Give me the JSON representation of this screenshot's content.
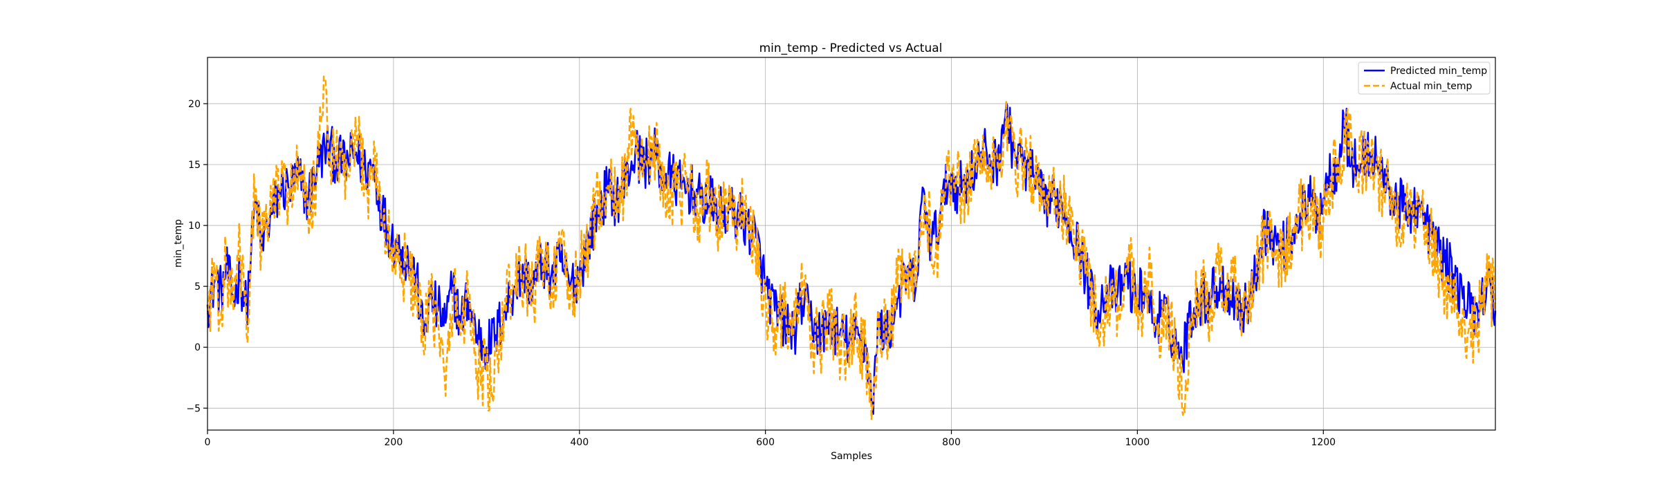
{
  "chart_data": {
    "type": "line",
    "title": "min_temp - Predicted vs Actual",
    "xlabel": "Samples",
    "ylabel": "min_temp",
    "xlim": [
      0,
      1385
    ],
    "ylim": [
      -6.8,
      23.8
    ],
    "xticks": [
      0,
      200,
      400,
      600,
      800,
      1000,
      1200
    ],
    "yticks": [
      -5,
      0,
      5,
      10,
      15,
      20
    ],
    "grid": true,
    "legend_position": "top-right",
    "series": [
      {
        "name": "Predicted min_temp",
        "color": "#0000ff",
        "style": "solid",
        "anchors": [
          [
            0,
            3.5
          ],
          [
            8,
            5.5
          ],
          [
            15,
            4.5
          ],
          [
            20,
            6.5
          ],
          [
            28,
            4
          ],
          [
            35,
            6
          ],
          [
            42,
            3
          ],
          [
            47,
            8
          ],
          [
            52,
            12
          ],
          [
            58,
            8
          ],
          [
            64,
            10
          ],
          [
            70,
            11
          ],
          [
            78,
            13
          ],
          [
            88,
            13
          ],
          [
            98,
            14
          ],
          [
            108,
            12
          ],
          [
            118,
            15
          ],
          [
            128,
            16.5
          ],
          [
            138,
            15.5
          ],
          [
            148,
            15
          ],
          [
            160,
            16
          ],
          [
            170,
            14.5
          ],
          [
            178,
            15
          ],
          [
            188,
            11
          ],
          [
            198,
            9
          ],
          [
            208,
            8
          ],
          [
            216,
            7
          ],
          [
            224,
            6
          ],
          [
            232,
            1
          ],
          [
            240,
            4
          ],
          [
            248,
            3
          ],
          [
            256,
            2
          ],
          [
            264,
            5
          ],
          [
            272,
            2
          ],
          [
            280,
            4
          ],
          [
            290,
            1
          ],
          [
            300,
            0
          ],
          [
            310,
            1
          ],
          [
            320,
            3
          ],
          [
            330,
            5
          ],
          [
            340,
            6
          ],
          [
            350,
            5
          ],
          [
            360,
            7
          ],
          [
            370,
            6
          ],
          [
            380,
            7
          ],
          [
            390,
            5
          ],
          [
            400,
            6
          ],
          [
            410,
            9
          ],
          [
            420,
            11
          ],
          [
            430,
            13
          ],
          [
            440,
            12
          ],
          [
            450,
            14
          ],
          [
            460,
            16
          ],
          [
            470,
            15
          ],
          [
            480,
            16
          ],
          [
            490,
            14
          ],
          [
            500,
            14
          ],
          [
            510,
            13
          ],
          [
            520,
            13
          ],
          [
            530,
            12
          ],
          [
            540,
            12
          ],
          [
            550,
            11
          ],
          [
            560,
            11
          ],
          [
            570,
            11
          ],
          [
            580,
            10
          ],
          [
            590,
            9
          ],
          [
            600,
            5
          ],
          [
            610,
            3
          ],
          [
            620,
            2
          ],
          [
            630,
            1
          ],
          [
            640,
            4
          ],
          [
            650,
            2
          ],
          [
            660,
            1
          ],
          [
            670,
            2
          ],
          [
            680,
            1
          ],
          [
            690,
            0.5
          ],
          [
            700,
            1
          ],
          [
            708,
            0
          ],
          [
            715,
            -4.5
          ],
          [
            722,
            2
          ],
          [
            732,
            1
          ],
          [
            742,
            4
          ],
          [
            752,
            6
          ],
          [
            762,
            5
          ],
          [
            770,
            13
          ],
          [
            778,
            8
          ],
          [
            788,
            11
          ],
          [
            798,
            14
          ],
          [
            808,
            13
          ],
          [
            818,
            14
          ],
          [
            828,
            15
          ],
          [
            838,
            16
          ],
          [
            848,
            15
          ],
          [
            858,
            19
          ],
          [
            868,
            16
          ],
          [
            878,
            15
          ],
          [
            888,
            14
          ],
          [
            898,
            12
          ],
          [
            908,
            12
          ],
          [
            918,
            12
          ],
          [
            928,
            10
          ],
          [
            938,
            8
          ],
          [
            948,
            5
          ],
          [
            958,
            3
          ],
          [
            968,
            5
          ],
          [
            978,
            4
          ],
          [
            988,
            6
          ],
          [
            998,
            4
          ],
          [
            1008,
            5
          ],
          [
            1018,
            2
          ],
          [
            1028,
            3
          ],
          [
            1038,
            1
          ],
          [
            1048,
            -1
          ],
          [
            1055,
            2
          ],
          [
            1065,
            4
          ],
          [
            1075,
            4
          ],
          [
            1085,
            5
          ],
          [
            1095,
            5
          ],
          [
            1105,
            4
          ],
          [
            1115,
            3
          ],
          [
            1125,
            5
          ],
          [
            1135,
            10
          ],
          [
            1145,
            9
          ],
          [
            1155,
            8
          ],
          [
            1165,
            9
          ],
          [
            1175,
            11
          ],
          [
            1185,
            12
          ],
          [
            1195,
            11
          ],
          [
            1205,
            14
          ],
          [
            1215,
            15
          ],
          [
            1222,
            19
          ],
          [
            1230,
            15
          ],
          [
            1240,
            15
          ],
          [
            1250,
            16
          ],
          [
            1260,
            15
          ],
          [
            1270,
            13
          ],
          [
            1280,
            12
          ],
          [
            1290,
            11
          ],
          [
            1300,
            12
          ],
          [
            1310,
            10
          ],
          [
            1320,
            9
          ],
          [
            1330,
            7
          ],
          [
            1340,
            6
          ],
          [
            1350,
            4
          ],
          [
            1360,
            3
          ],
          [
            1370,
            4
          ],
          [
            1380,
            5
          ],
          [
            1385,
            3
          ]
        ]
      },
      {
        "name": "Actual min_temp",
        "color": "#ffa500",
        "style": "dashed",
        "anchors": [
          [
            0,
            3
          ],
          [
            8,
            6
          ],
          [
            15,
            3
          ],
          [
            20,
            7
          ],
          [
            28,
            3
          ],
          [
            35,
            8
          ],
          [
            42,
            1
          ],
          [
            47,
            9
          ],
          [
            52,
            13
          ],
          [
            58,
            8
          ],
          [
            64,
            10
          ],
          [
            70,
            12
          ],
          [
            78,
            13
          ],
          [
            88,
            13
          ],
          [
            98,
            14
          ],
          [
            108,
            11
          ],
          [
            118,
            14
          ],
          [
            126,
            22
          ],
          [
            132,
            15
          ],
          [
            142,
            15
          ],
          [
            152,
            14
          ],
          [
            162,
            17
          ],
          [
            172,
            13
          ],
          [
            180,
            16
          ],
          [
            188,
            10
          ],
          [
            198,
            8
          ],
          [
            208,
            7
          ],
          [
            216,
            6
          ],
          [
            224,
            5
          ],
          [
            232,
            0
          ],
          [
            240,
            4
          ],
          [
            248,
            2
          ],
          [
            256,
            -4
          ],
          [
            264,
            5
          ],
          [
            272,
            1
          ],
          [
            280,
            5
          ],
          [
            290,
            -2
          ],
          [
            300,
            -2
          ],
          [
            307,
            -4.5
          ],
          [
            312,
            -1
          ],
          [
            320,
            4
          ],
          [
            330,
            5
          ],
          [
            340,
            6
          ],
          [
            350,
            4
          ],
          [
            360,
            8
          ],
          [
            370,
            5
          ],
          [
            380,
            8
          ],
          [
            390,
            4
          ],
          [
            400,
            6
          ],
          [
            410,
            9
          ],
          [
            420,
            12
          ],
          [
            430,
            13
          ],
          [
            440,
            12
          ],
          [
            450,
            14
          ],
          [
            458,
            19
          ],
          [
            468,
            14
          ],
          [
            478,
            17
          ],
          [
            488,
            14
          ],
          [
            498,
            13
          ],
          [
            508,
            12
          ],
          [
            518,
            14
          ],
          [
            528,
            11
          ],
          [
            538,
            13
          ],
          [
            548,
            10
          ],
          [
            558,
            12
          ],
          [
            568,
            10
          ],
          [
            578,
            12
          ],
          [
            588,
            8
          ],
          [
            598,
            4
          ],
          [
            608,
            2
          ],
          [
            618,
            3
          ],
          [
            628,
            1
          ],
          [
            638,
            5
          ],
          [
            648,
            1
          ],
          [
            658,
            0
          ],
          [
            668,
            3
          ],
          [
            678,
            0
          ],
          [
            688,
            0
          ],
          [
            698,
            2
          ],
          [
            708,
            -1
          ],
          [
            715,
            -5
          ],
          [
            722,
            3
          ],
          [
            732,
            0
          ],
          [
            742,
            5
          ],
          [
            752,
            6
          ],
          [
            762,
            5
          ],
          [
            772,
            12
          ],
          [
            782,
            7
          ],
          [
            792,
            12
          ],
          [
            802,
            15
          ],
          [
            812,
            12
          ],
          [
            822,
            15
          ],
          [
            832,
            16
          ],
          [
            842,
            14
          ],
          [
            852,
            16
          ],
          [
            862,
            18
          ],
          [
            872,
            15
          ],
          [
            882,
            16
          ],
          [
            892,
            13
          ],
          [
            902,
            12
          ],
          [
            912,
            13
          ],
          [
            922,
            11
          ],
          [
            932,
            9
          ],
          [
            942,
            7
          ],
          [
            952,
            4
          ],
          [
            962,
            2
          ],
          [
            972,
            5
          ],
          [
            982,
            3
          ],
          [
            992,
            7
          ],
          [
            1002,
            3
          ],
          [
            1012,
            6
          ],
          [
            1022,
            1
          ],
          [
            1032,
            2
          ],
          [
            1042,
            0
          ],
          [
            1050,
            -5
          ],
          [
            1058,
            2
          ],
          [
            1068,
            5
          ],
          [
            1078,
            3
          ],
          [
            1088,
            6
          ],
          [
            1098,
            4
          ],
          [
            1108,
            5
          ],
          [
            1118,
            2
          ],
          [
            1128,
            6
          ],
          [
            1138,
            9
          ],
          [
            1148,
            8
          ],
          [
            1158,
            7
          ],
          [
            1168,
            10
          ],
          [
            1178,
            11
          ],
          [
            1188,
            12
          ],
          [
            1198,
            10
          ],
          [
            1208,
            14
          ],
          [
            1218,
            15
          ],
          [
            1225,
            19
          ],
          [
            1235,
            14
          ],
          [
            1245,
            16
          ],
          [
            1255,
            14
          ],
          [
            1265,
            13
          ],
          [
            1275,
            12
          ],
          [
            1285,
            10
          ],
          [
            1295,
            11
          ],
          [
            1305,
            11
          ],
          [
            1315,
            9
          ],
          [
            1325,
            6
          ],
          [
            1335,
            5
          ],
          [
            1345,
            3
          ],
          [
            1355,
            1
          ],
          [
            1365,
            2
          ],
          [
            1375,
            5
          ],
          [
            1385,
            4
          ]
        ]
      }
    ]
  }
}
